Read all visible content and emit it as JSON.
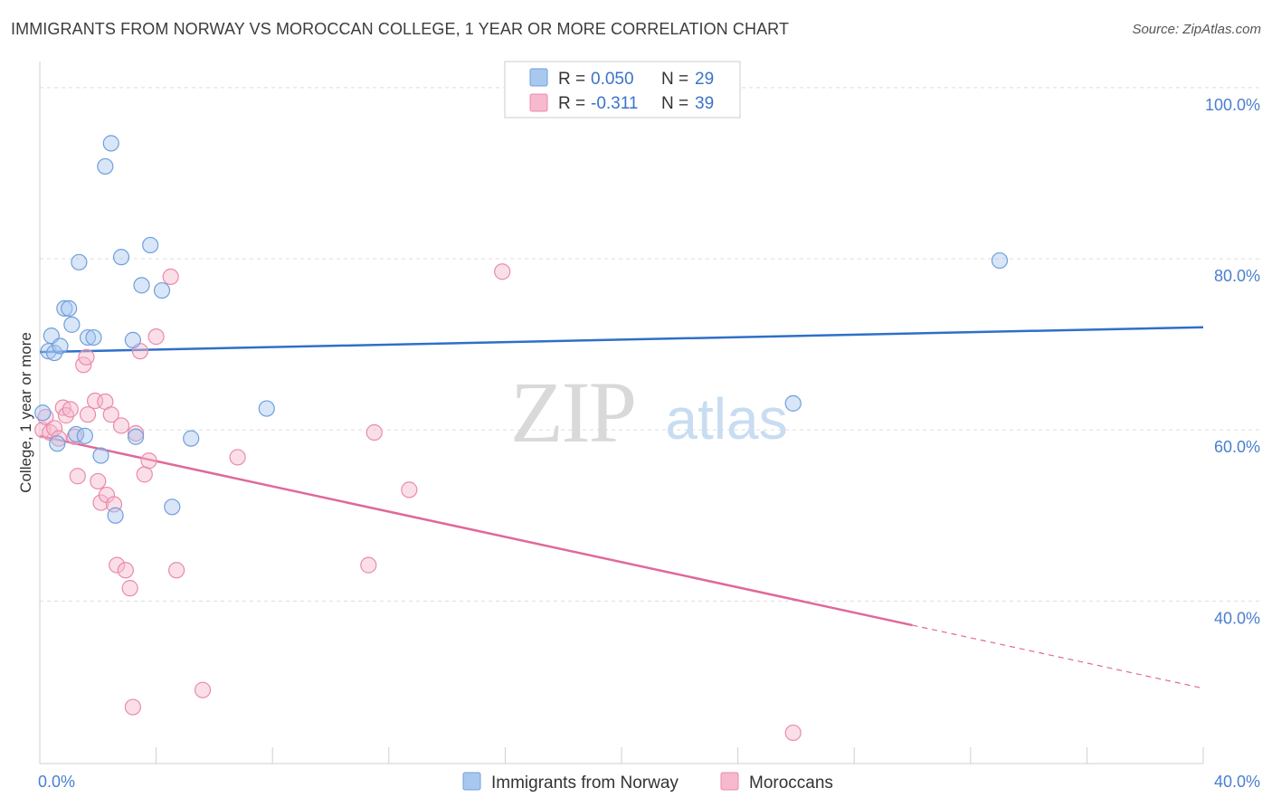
{
  "title": "IMMIGRANTS FROM NORWAY VS MOROCCAN COLLEGE, 1 YEAR OR MORE CORRELATION CHART",
  "source": "Source: ZipAtlas.com",
  "watermark": {
    "zip": "ZIP",
    "atlas": "atlas"
  },
  "colors": {
    "norway_fill": "#a9c8f0",
    "norway_stroke": "#6f9fdc",
    "norway_line": "#2f6fc9",
    "moroccan_fill": "#f6b9cd",
    "moroccan_stroke": "#e98bab",
    "moroccan_line": "#e0689a",
    "grid": "#dddddd",
    "axis_text": "#4a7fcf"
  },
  "legend": {
    "rows": [
      {
        "r_label": "R =",
        "r_value": "0.050",
        "n_label": "N =",
        "n_value": "29",
        "series": "norway"
      },
      {
        "r_label": "R =",
        "r_value": "-0.311",
        "n_label": "N =",
        "n_value": "39",
        "series": "moroccan"
      }
    ]
  },
  "chart_data": {
    "type": "scatter",
    "title": "IMMIGRANTS FROM NORWAY VS MOROCCAN COLLEGE, 1 YEAR OR MORE CORRELATION CHART",
    "xlabel": "",
    "ylabel": "College, 1 year or more",
    "xlim": [
      0,
      40
    ],
    "ylim": [
      21,
      102
    ],
    "x_tick_labels": [
      {
        "value": 0,
        "label": "0.0%"
      },
      {
        "value": 40,
        "label": "40.0%"
      }
    ],
    "y_tick_labels": [
      {
        "value": 100,
        "label": "100.0%"
      },
      {
        "value": 80,
        "label": "80.0%"
      },
      {
        "value": 60,
        "label": "60.0%"
      },
      {
        "value": 40,
        "label": "40.0%"
      }
    ],
    "grid": true,
    "legend_position": "bottom",
    "series": [
      {
        "name": "Immigrants from Norway",
        "key": "norway",
        "R": 0.05,
        "N": 29,
        "trend": {
          "x0": 0,
          "y0": 69.1,
          "x1": 40,
          "y1": 72.0,
          "dashed_from": null
        },
        "points": [
          [
            0.1,
            62.0
          ],
          [
            0.3,
            69.2
          ],
          [
            0.4,
            71.0
          ],
          [
            0.5,
            69.0
          ],
          [
            0.6,
            58.4
          ],
          [
            0.7,
            69.8
          ],
          [
            0.85,
            74.2
          ],
          [
            1.0,
            74.2
          ],
          [
            1.1,
            72.3
          ],
          [
            1.25,
            59.5
          ],
          [
            1.35,
            79.6
          ],
          [
            1.55,
            59.3
          ],
          [
            1.65,
            70.8
          ],
          [
            1.85,
            70.8
          ],
          [
            2.1,
            57.0
          ],
          [
            2.25,
            90.8
          ],
          [
            2.45,
            93.5
          ],
          [
            2.6,
            50.0
          ],
          [
            2.8,
            80.2
          ],
          [
            3.2,
            70.5
          ],
          [
            3.3,
            59.2
          ],
          [
            3.5,
            76.9
          ],
          [
            3.8,
            81.6
          ],
          [
            4.2,
            76.3
          ],
          [
            4.55,
            51.0
          ],
          [
            5.2,
            59.0
          ],
          [
            7.8,
            62.5
          ],
          [
            25.9,
            63.1
          ],
          [
            33.0,
            79.8
          ]
        ]
      },
      {
        "name": "Moroccans",
        "key": "moroccan",
        "R": -0.311,
        "N": 39,
        "trend": {
          "x0": 0,
          "y0": 59.3,
          "x1": 40,
          "y1": 29.8,
          "dashed_from": 30.0
        },
        "points": [
          [
            0.1,
            60.0
          ],
          [
            0.2,
            61.5
          ],
          [
            0.35,
            59.7
          ],
          [
            0.5,
            60.2
          ],
          [
            0.65,
            59.0
          ],
          [
            0.8,
            62.6
          ],
          [
            0.9,
            61.7
          ],
          [
            1.05,
            62.4
          ],
          [
            1.2,
            59.2
          ],
          [
            1.3,
            54.6
          ],
          [
            1.5,
            67.6
          ],
          [
            1.6,
            68.5
          ],
          [
            1.65,
            61.8
          ],
          [
            1.9,
            63.4
          ],
          [
            2.0,
            54.0
          ],
          [
            2.1,
            51.5
          ],
          [
            2.25,
            63.3
          ],
          [
            2.3,
            52.4
          ],
          [
            2.45,
            61.8
          ],
          [
            2.55,
            51.3
          ],
          [
            2.65,
            44.2
          ],
          [
            2.8,
            60.5
          ],
          [
            2.95,
            43.6
          ],
          [
            3.1,
            41.5
          ],
          [
            3.2,
            27.6
          ],
          [
            3.3,
            59.6
          ],
          [
            3.45,
            69.2
          ],
          [
            3.6,
            54.8
          ],
          [
            3.75,
            56.4
          ],
          [
            4.0,
            70.9
          ],
          [
            4.5,
            77.9
          ],
          [
            4.7,
            43.6
          ],
          [
            5.6,
            29.6
          ],
          [
            6.8,
            56.8
          ],
          [
            11.3,
            44.2
          ],
          [
            11.5,
            59.7
          ],
          [
            12.7,
            53.0
          ],
          [
            15.9,
            78.5
          ],
          [
            25.9,
            24.6
          ]
        ]
      }
    ]
  }
}
